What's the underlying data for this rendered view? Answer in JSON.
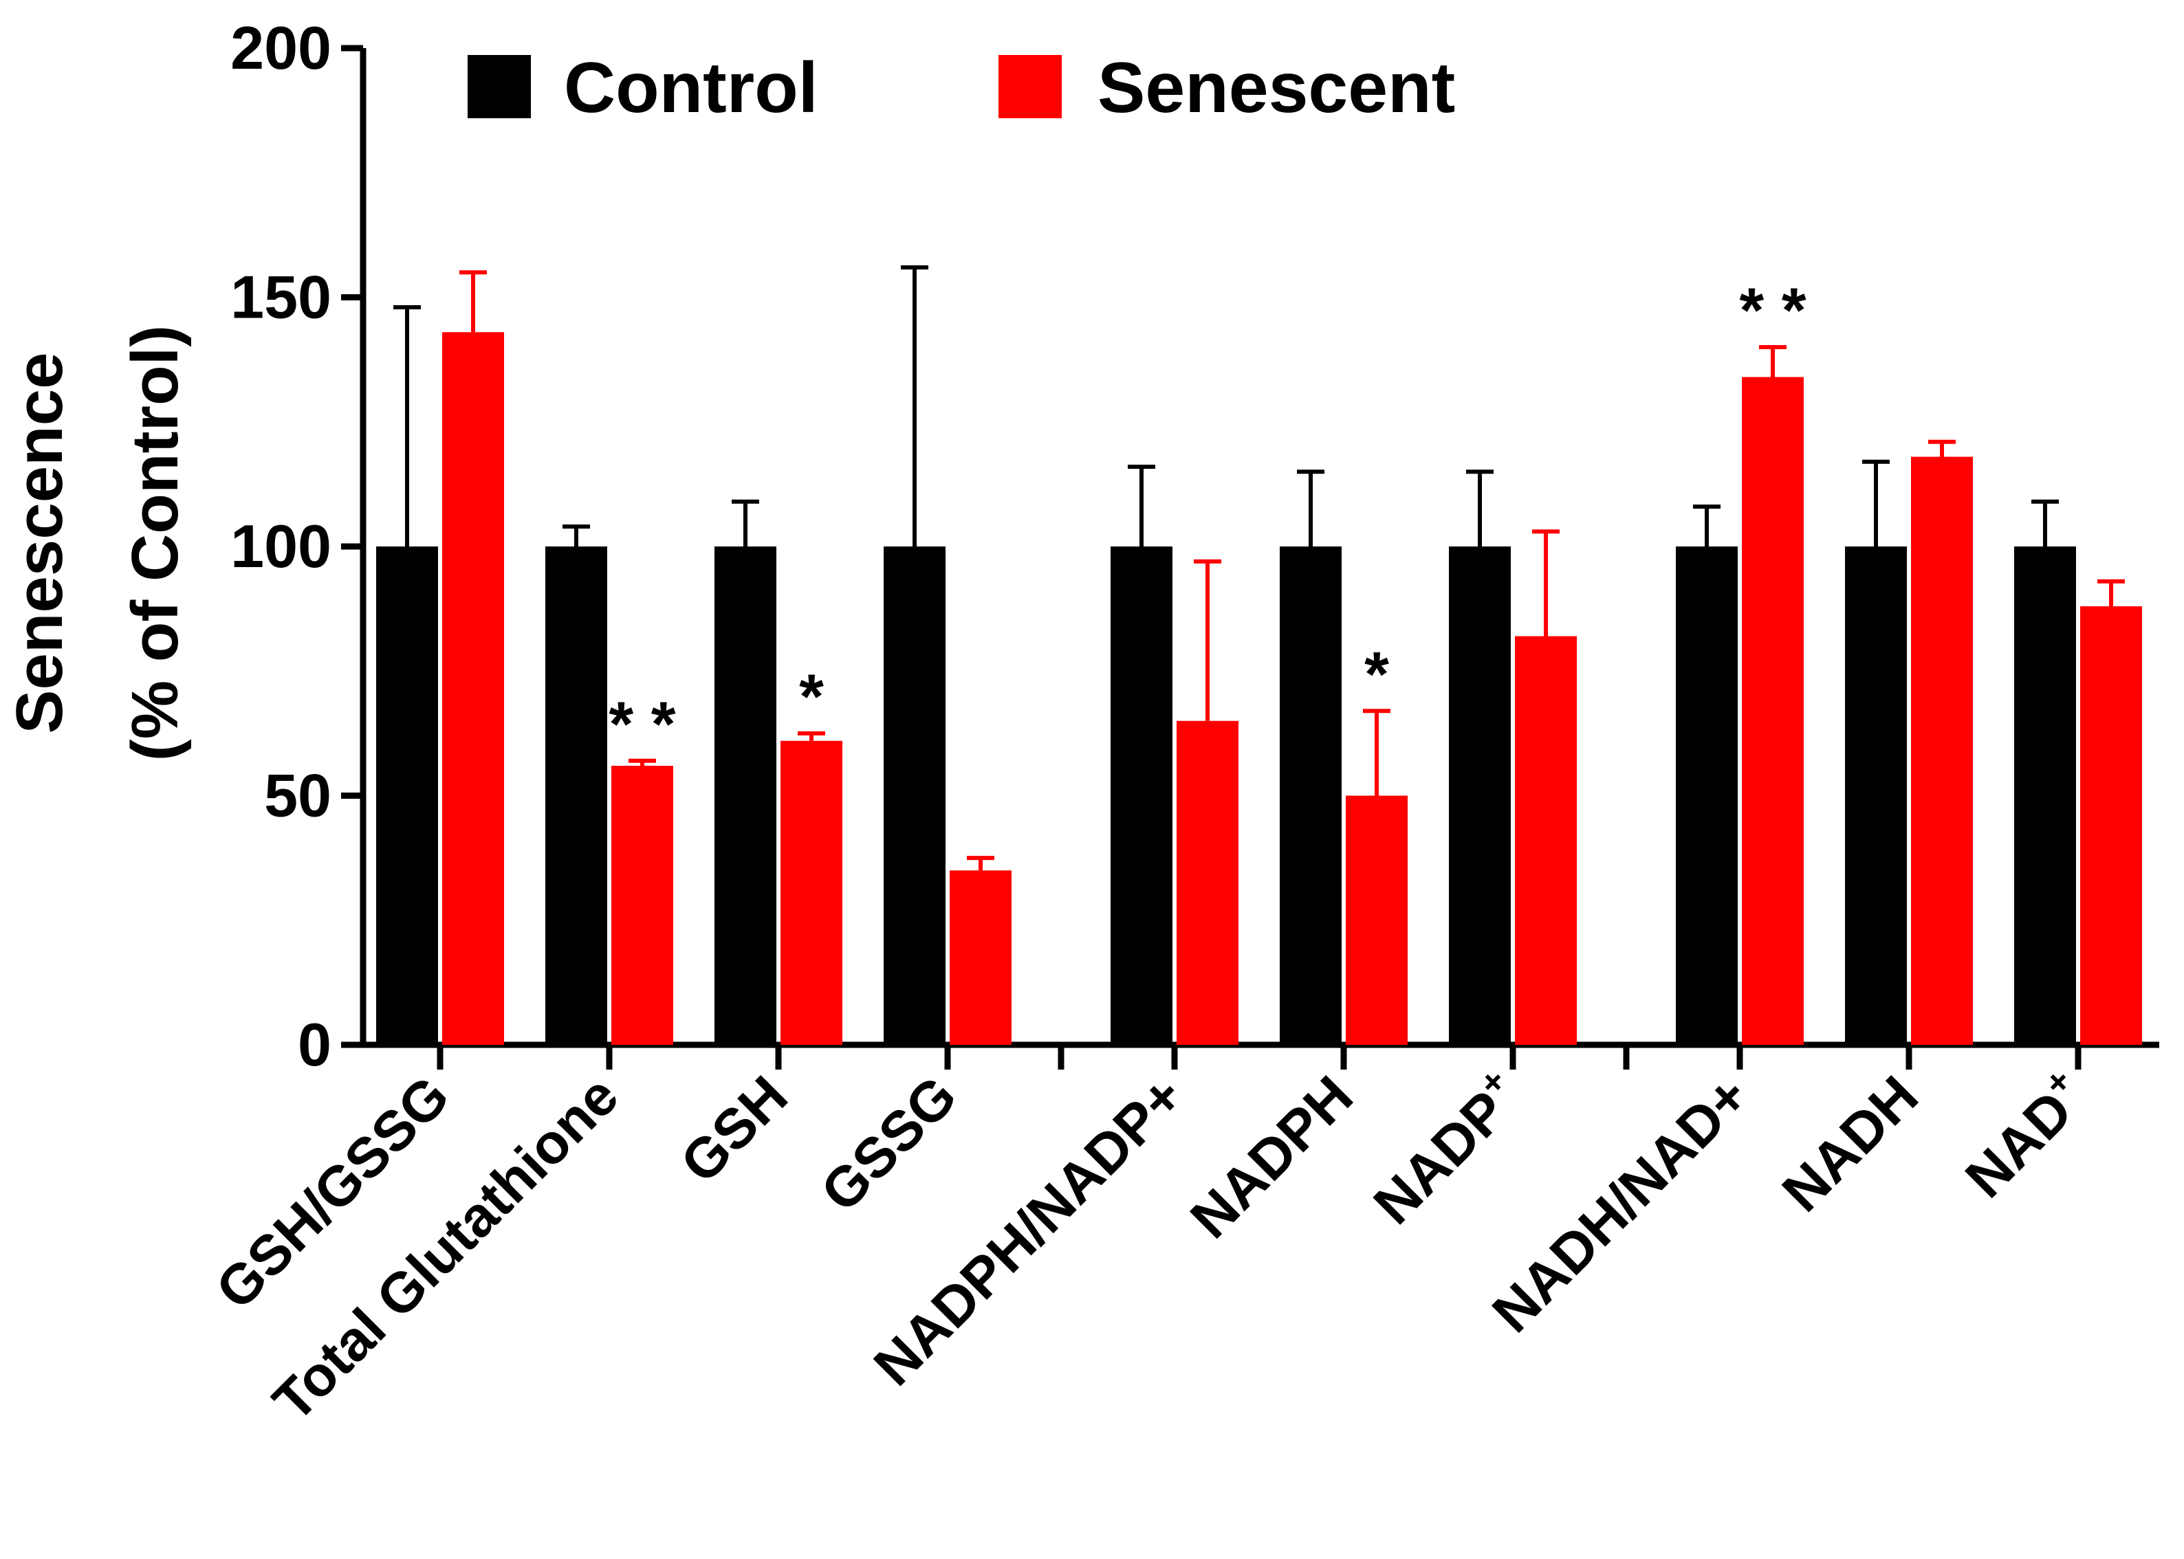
{
  "chart_data": {
    "type": "bar",
    "ylabel_lines": [
      "Senescence",
      "(% of Control)"
    ],
    "ylim": [
      0,
      200
    ],
    "yticks": [
      0,
      50,
      100,
      150,
      200
    ],
    "legend_position": "top",
    "grid": false,
    "categories": [
      {
        "label": "GSH/GSSG",
        "super": ""
      },
      {
        "label": "Total Glutathione",
        "super": ""
      },
      {
        "label": "GSH",
        "super": ""
      },
      {
        "label": "GSSG",
        "super": ""
      },
      {
        "label": "NADPH/NADP+",
        "super": ""
      },
      {
        "label": "NADPH",
        "super": ""
      },
      {
        "label": "NADP",
        "super": "+"
      },
      {
        "label": "NADH/NAD+",
        "super": ""
      },
      {
        "label": "NADH",
        "super": ""
      },
      {
        "label": "NAD",
        "super": "+"
      }
    ],
    "groups": [
      [
        0,
        1,
        2,
        3
      ],
      [
        4,
        5,
        6
      ],
      [
        7,
        8,
        9
      ]
    ],
    "series": [
      {
        "name": "Control",
        "color": "#000000",
        "values": [
          100,
          100,
          100,
          100,
          100,
          100,
          100,
          100,
          100,
          100
        ],
        "error": [
          48,
          4,
          9,
          56,
          16,
          15,
          15,
          8,
          17,
          9
        ]
      },
      {
        "name": "Senescent",
        "color": "#ff0000",
        "values": [
          143,
          56,
          61,
          35,
          65,
          50,
          82,
          134,
          118,
          88
        ],
        "error": [
          12,
          1,
          1.5,
          2.5,
          32,
          17,
          21,
          6,
          3,
          5
        ]
      }
    ],
    "significance": [
      "",
      "**",
      "*",
      "",
      "",
      "*",
      "",
      "**",
      "",
      ""
    ]
  }
}
